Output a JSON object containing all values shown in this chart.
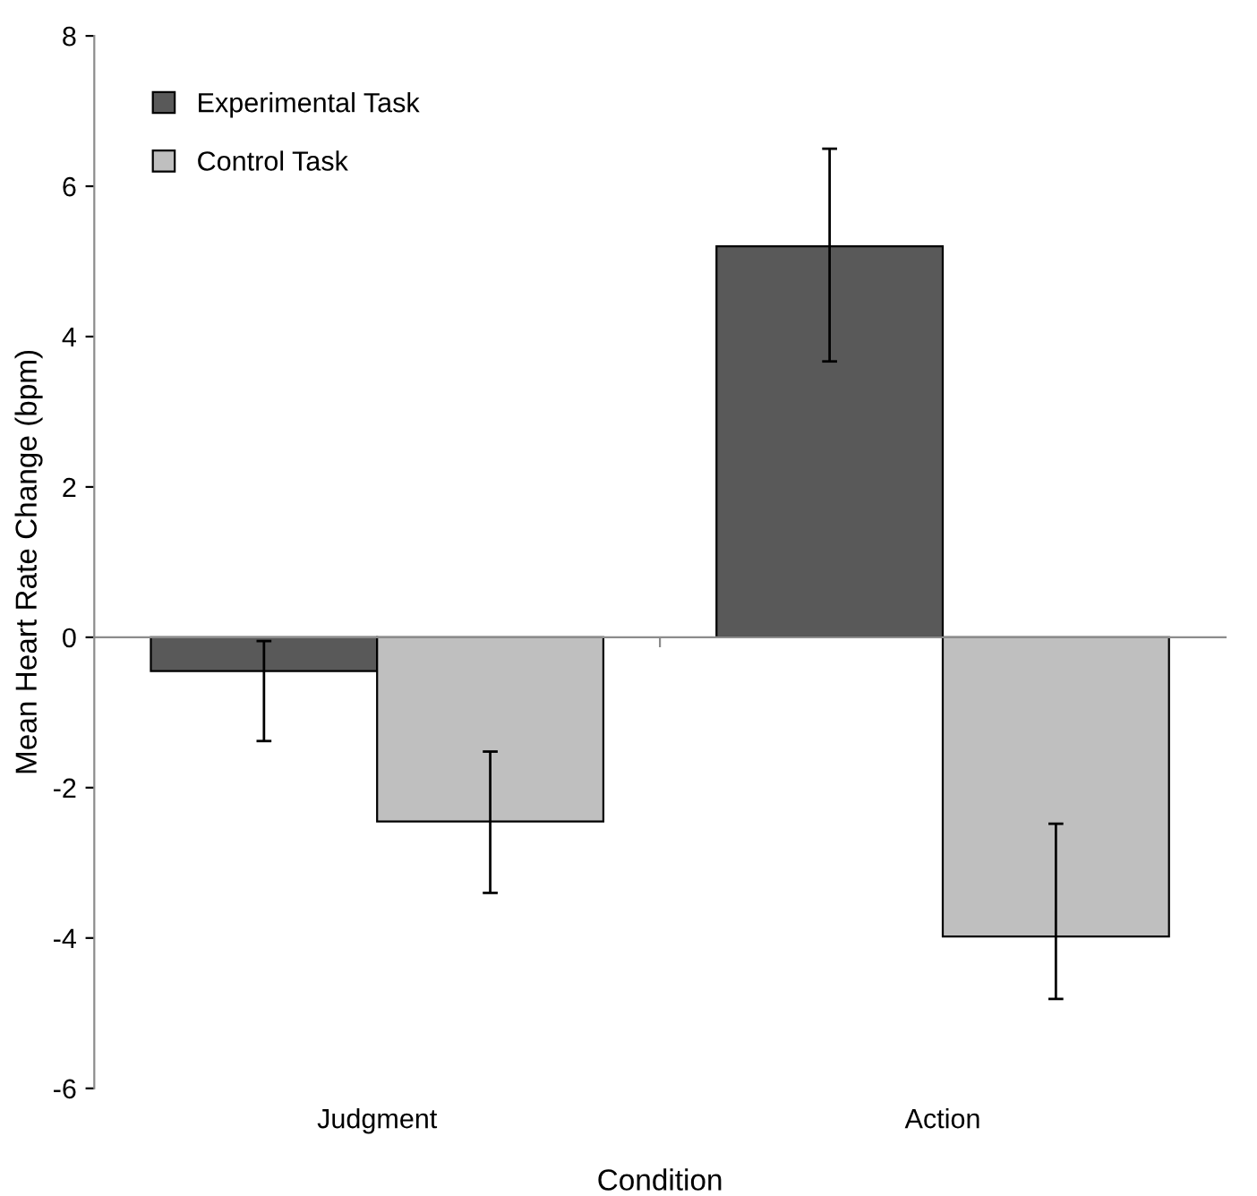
{
  "chart_data": {
    "type": "bar",
    "xlabel": "Condition",
    "ylabel": "Mean Heart Rate Change (bpm)",
    "categories": [
      "Judgment",
      "Action"
    ],
    "series": [
      {
        "name": "Experimental Task",
        "color": "#595959",
        "values": [
          -0.45,
          5.2
        ],
        "errors": [
          [
            -1.38,
            -0.05
          ],
          [
            3.67,
            6.5
          ]
        ]
      },
      {
        "name": "Control Task",
        "color": "#bfbfbf",
        "values": [
          -2.45,
          -3.98
        ],
        "errors": [
          [
            -3.4,
            -1.52
          ],
          [
            -4.81,
            -2.48
          ]
        ]
      }
    ],
    "ylim": [
      -6,
      8
    ],
    "yticks": [
      -6,
      -4,
      -2,
      0,
      2,
      4,
      6,
      8
    ],
    "legend": "top left"
  }
}
